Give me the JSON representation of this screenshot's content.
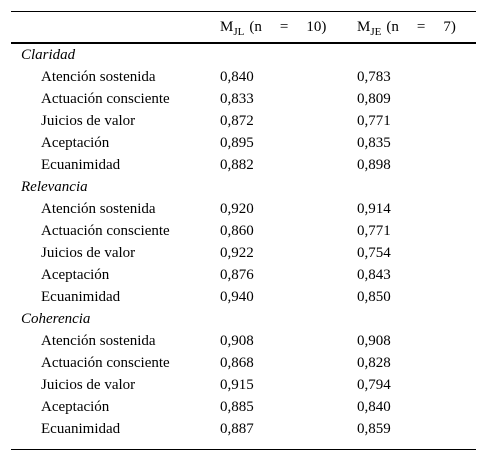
{
  "header": {
    "col1": {
      "m": "M",
      "sub": "JL",
      "open": "(n",
      "eq": "=",
      "val": "10)"
    },
    "col2": {
      "m": "M",
      "sub": "JE",
      "open": "(n",
      "eq": "=",
      "val": "7)"
    }
  },
  "groups": [
    {
      "title": "Claridad",
      "rows": [
        {
          "label": "Atención sostenida",
          "jl": "0,840",
          "je": "0,783"
        },
        {
          "label": "Actuación consciente",
          "jl": "0,833",
          "je": "0,809"
        },
        {
          "label": "Juicios de valor",
          "jl": "0,872",
          "je": "0,771"
        },
        {
          "label": "Aceptación",
          "jl": "0,895",
          "je": "0,835"
        },
        {
          "label": "Ecuanimidad",
          "jl": "0,882",
          "je": "0,898"
        }
      ]
    },
    {
      "title": "Relevancia",
      "rows": [
        {
          "label": "Atención sostenida",
          "jl": "0,920",
          "je": "0,914"
        },
        {
          "label": "Actuación consciente",
          "jl": "0,860",
          "je": "0,771"
        },
        {
          "label": "Juicios de valor",
          "jl": "0,922",
          "je": "0,754"
        },
        {
          "label": "Aceptación",
          "jl": "0,876",
          "je": "0,843"
        },
        {
          "label": "Ecuanimidad",
          "jl": "0,940",
          "je": "0,850"
        }
      ]
    },
    {
      "title": "Coherencia",
      "rows": [
        {
          "label": "Atención sostenida",
          "jl": "0,908",
          "je": "0,908"
        },
        {
          "label": "Actuación consciente",
          "jl": "0,868",
          "je": "0,828"
        },
        {
          "label": "Juicios de valor",
          "jl": "0,915",
          "je": "0,794"
        },
        {
          "label": "Aceptación",
          "jl": "0,885",
          "je": "0,840"
        },
        {
          "label": "Ecuanimidad",
          "jl": "0,887",
          "je": "0,859"
        }
      ]
    }
  ]
}
